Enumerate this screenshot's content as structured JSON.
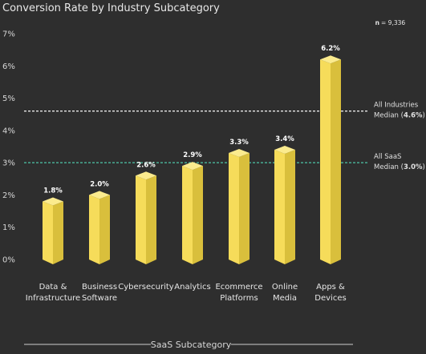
{
  "chart_data": {
    "type": "bar",
    "title": "Conversion Rate by Industry Subcategory",
    "n_label": "n",
    "n_value": "= 9,336",
    "xlabel": "SaaS Subcategory",
    "ylabel": "",
    "ylim": [
      0,
      7
    ],
    "yticks": [
      "0%",
      "1%",
      "2%",
      "3%",
      "4%",
      "5%",
      "6%",
      "7%"
    ],
    "categories": [
      [
        "Data &",
        "Infrastructure"
      ],
      [
        "Business",
        "Software"
      ],
      [
        "Cybersecurity"
      ],
      [
        "Analytics"
      ],
      [
        "Ecommerce",
        "Platforms"
      ],
      [
        "Online",
        "Media"
      ],
      [
        "Apps &",
        "Devices"
      ]
    ],
    "values": [
      1.8,
      2.0,
      2.6,
      2.9,
      3.3,
      3.4,
      6.2
    ],
    "value_labels": [
      "1.8%",
      "2.0%",
      "2.6%",
      "2.9%",
      "3.3%",
      "3.4%",
      "6.2%"
    ],
    "reference_lines": [
      {
        "value": 4.6,
        "label_lines": [
          "All Industries",
          "Median ("
        ],
        "bold": "4.6%",
        "tail": ")",
        "color": "#e8e8e8"
      },
      {
        "value": 3.0,
        "label_lines": [
          "All SaaS",
          "Median ("
        ],
        "bold": "3.0%",
        "tail": ")",
        "color": "#4ec7a8"
      }
    ],
    "grid": false,
    "colors": {
      "bar": "#f6dc5a",
      "bar_side": "#d9bf3c",
      "bar_top": "#fbeb8e",
      "background": "#2e2e2e"
    }
  }
}
